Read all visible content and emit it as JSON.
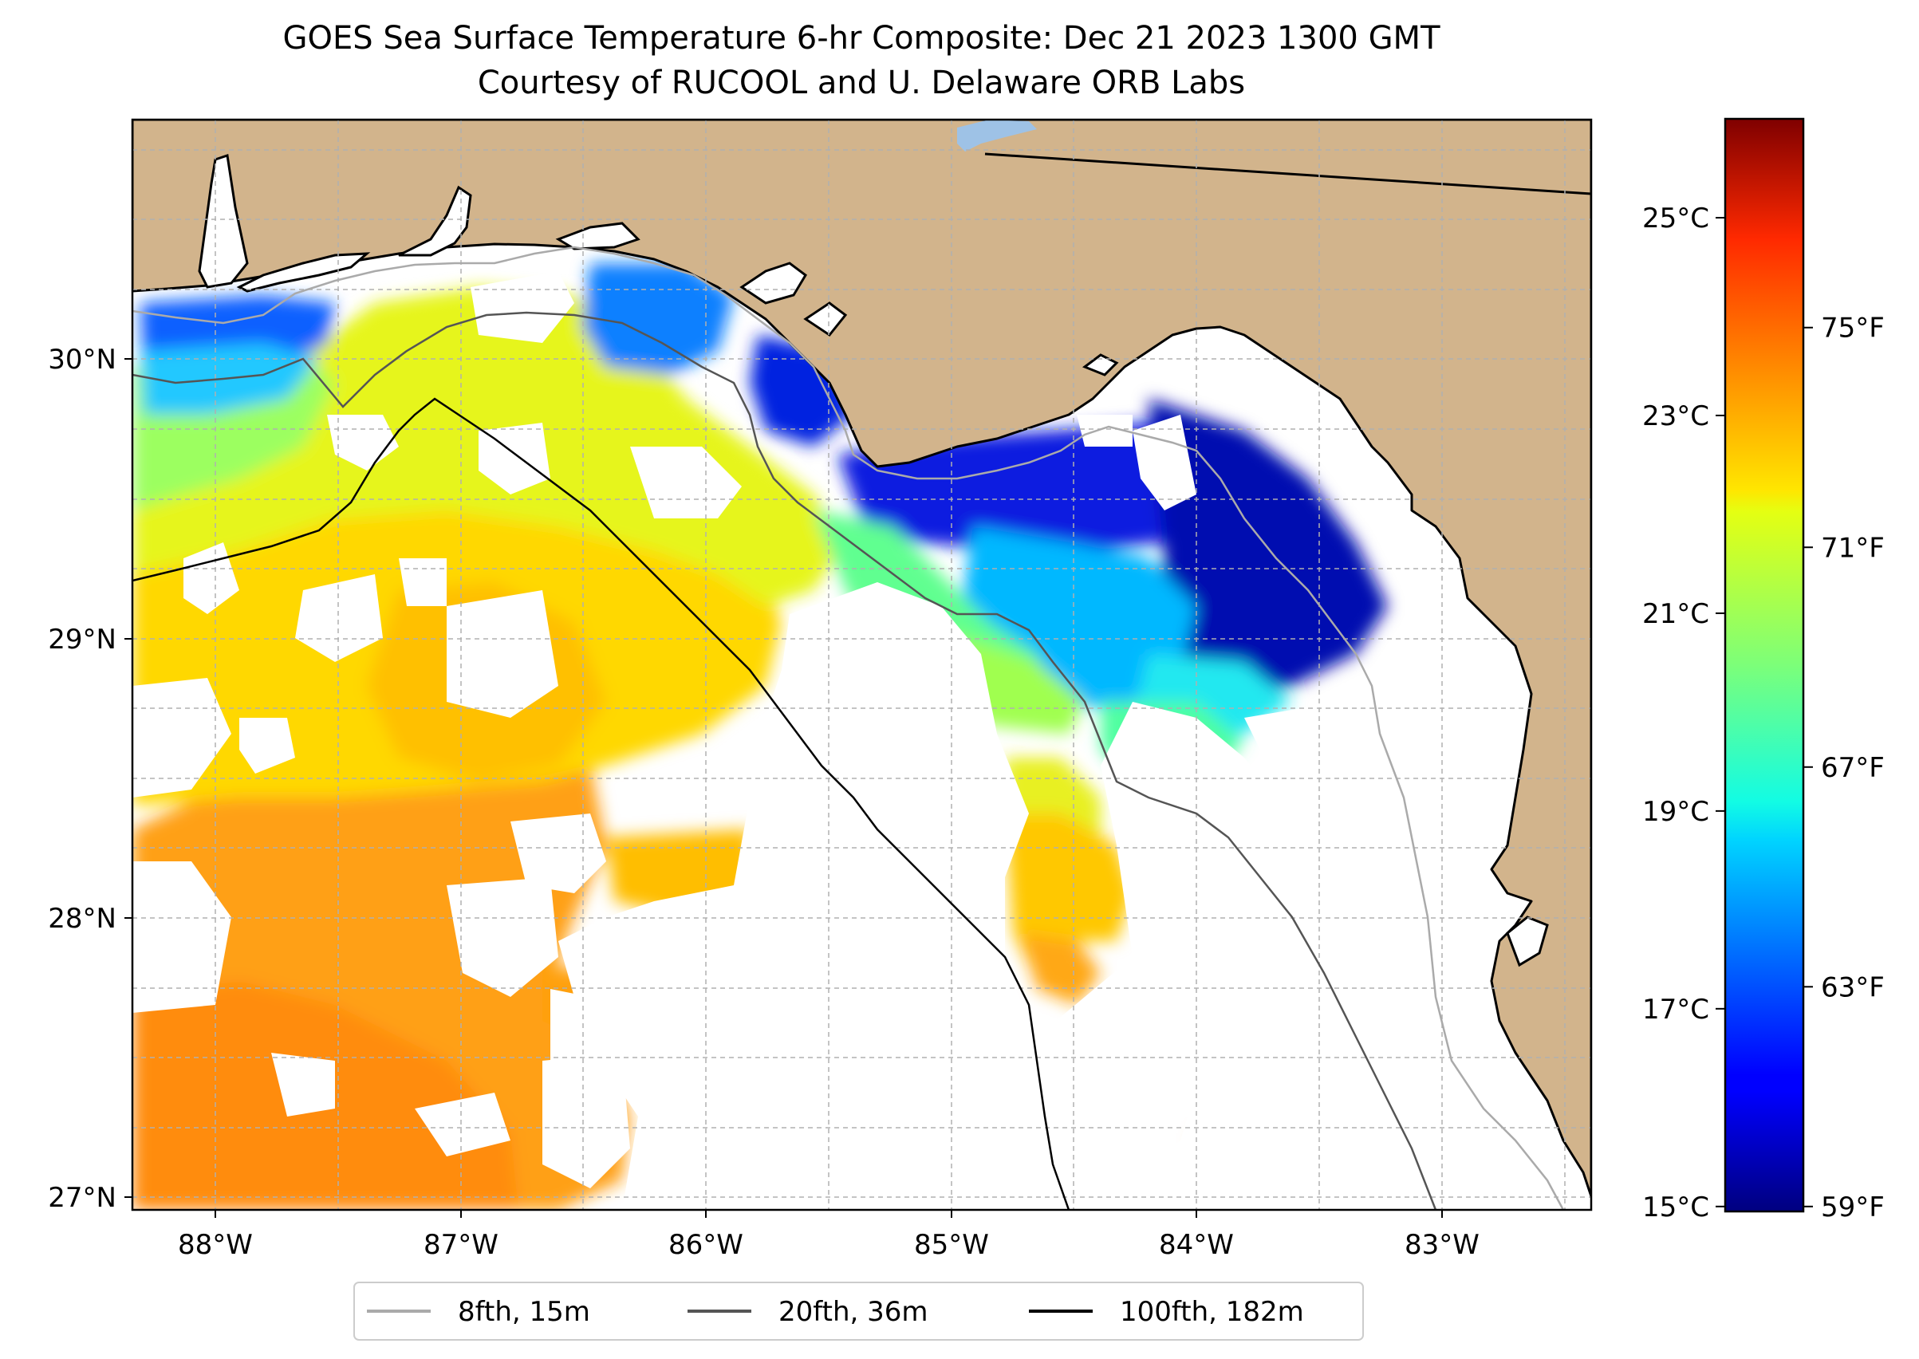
{
  "title": {
    "line1": "GOES Sea Surface Temperature 6-hr Composite: Dec 21 2023 1300 GMT",
    "line2": "Courtesy of RUCOOL and U. Delaware ORB Labs"
  },
  "map": {
    "lon_range": [
      -88.33,
      -82.37
    ],
    "lat_range": [
      26.93,
      30.84
    ],
    "lat_ticks": [
      {
        "value": 30,
        "label": "30°N"
      },
      {
        "value": 29,
        "label": "29°N"
      },
      {
        "value": 28,
        "label": "28°N"
      },
      {
        "value": 27,
        "label": "27°N"
      }
    ],
    "lon_ticks": [
      {
        "value": -88,
        "label": "88°W"
      },
      {
        "value": -87,
        "label": "87°W"
      },
      {
        "value": -86,
        "label": "86°W"
      },
      {
        "value": -85,
        "label": "85°W"
      },
      {
        "value": -84,
        "label": "84°W"
      },
      {
        "value": -83,
        "label": "83°W"
      }
    ],
    "colors": {
      "land": "#d2b48c",
      "lake": "#9ec2e6",
      "grid": "#b0b0b0",
      "contour_15m": "#aaaaaa",
      "contour_36m": "#555555",
      "contour_182m": "#000000"
    }
  },
  "colorbar": {
    "celsius": [
      {
        "value": 25,
        "label": "25°C"
      },
      {
        "value": 23,
        "label": "23°C"
      },
      {
        "value": 21,
        "label": "21°C"
      },
      {
        "value": 19,
        "label": "19°C"
      },
      {
        "value": 17,
        "label": "17°C"
      },
      {
        "value": 15,
        "label": "15°C"
      }
    ],
    "fahrenheit": [
      {
        "value": 75,
        "label": "75°F"
      },
      {
        "value": 71,
        "label": "71°F"
      },
      {
        "value": 67,
        "label": "67°F"
      },
      {
        "value": 63,
        "label": "63°F"
      },
      {
        "value": 59,
        "label": "59°F"
      }
    ],
    "range_c": [
      14.95,
      26.0
    ],
    "colormap": "jet"
  },
  "legend": {
    "items": [
      {
        "label": "8fth, 15m",
        "color": "#aaaaaa"
      },
      {
        "label": "20fth, 36m",
        "color": "#555555"
      },
      {
        "label": "100fth, 182m",
        "color": "#000000"
      }
    ]
  }
}
